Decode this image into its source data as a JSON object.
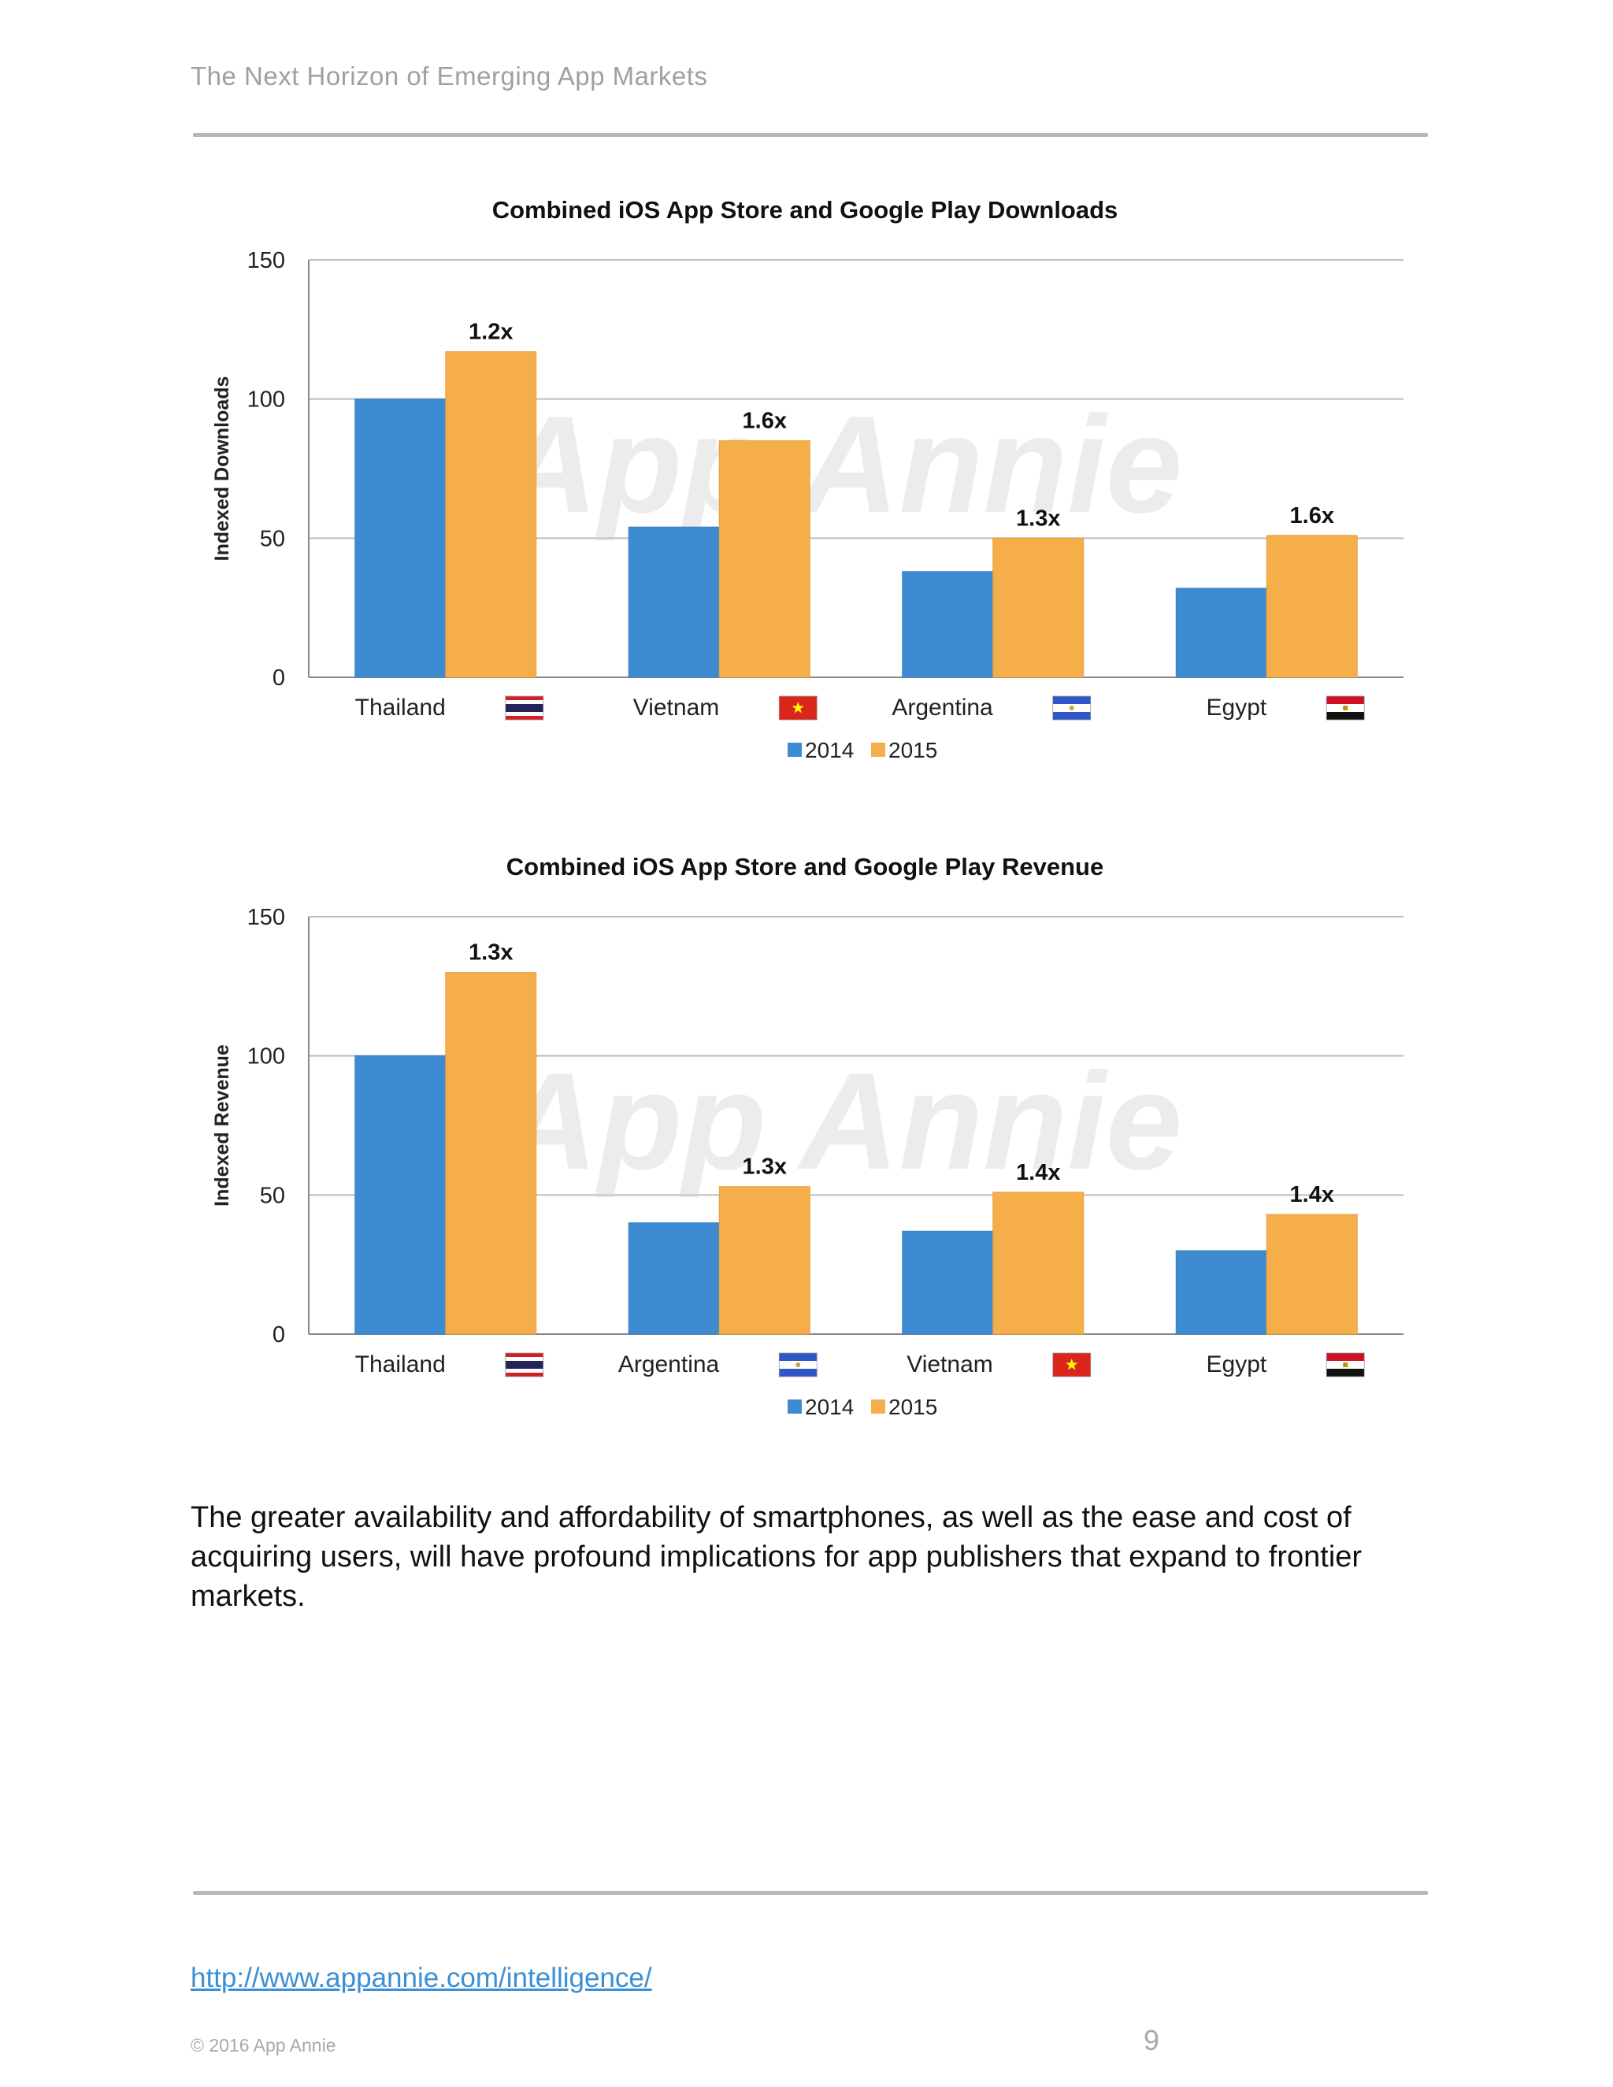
{
  "header": {
    "title": "The Next Horizon of Emerging App Markets"
  },
  "colors": {
    "series_2014": "#3f8bd1",
    "series_2015": "#f5ae4a",
    "grid": "#bdbdbd",
    "watermark": "#d0d0d0"
  },
  "chart_data": [
    {
      "type": "bar",
      "title": "Combined iOS App Store and Google Play Downloads",
      "ylabel": "Indexed Downloads",
      "ylim": [
        0,
        150
      ],
      "yticks": [
        0,
        50,
        100,
        150
      ],
      "grid": true,
      "legend_position": "bottom",
      "categories": [
        "Thailand",
        "Vietnam",
        "Argentina",
        "Egypt"
      ],
      "flags": [
        "thailand-flag",
        "vietnam-flag",
        "argentina-flag",
        "egypt-flag"
      ],
      "series": [
        {
          "name": "2014",
          "values": [
            100,
            54,
            38,
            32
          ]
        },
        {
          "name": "2015",
          "values": [
            117,
            85,
            50,
            51
          ]
        }
      ],
      "annotations": [
        "1.2x",
        "1.6x",
        "1.3x",
        "1.6x"
      ],
      "watermark": "App Annie"
    },
    {
      "type": "bar",
      "title": "Combined iOS App Store and Google Play Revenue",
      "ylabel": "Indexed Revenue",
      "ylim": [
        0,
        150
      ],
      "yticks": [
        0,
        50,
        100,
        150
      ],
      "grid": true,
      "legend_position": "bottom",
      "categories": [
        "Thailand",
        "Argentina",
        "Vietnam",
        "Egypt"
      ],
      "flags": [
        "thailand-flag",
        "argentina-flag",
        "vietnam-flag",
        "egypt-flag"
      ],
      "series": [
        {
          "name": "2014",
          "values": [
            100,
            40,
            37,
            30
          ]
        },
        {
          "name": "2015",
          "values": [
            130,
            53,
            51,
            43
          ]
        }
      ],
      "annotations": [
        "1.3x",
        "1.3x",
        "1.4x",
        "1.4x"
      ],
      "watermark": "App Annie"
    }
  ],
  "body": {
    "paragraph": "The greater availability and affordability of smartphones, as well as the ease and cost of acquiring users, will have profound implications for app publishers that expand to frontier markets."
  },
  "footer": {
    "link": "http://www.appannie.com/intelligence/",
    "copyright": "© 2016 App Annie",
    "page_number": "9"
  }
}
